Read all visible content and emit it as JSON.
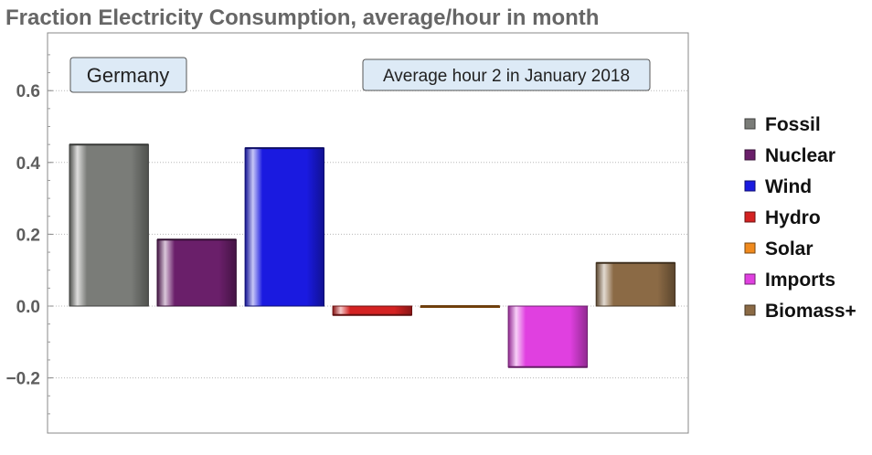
{
  "chart_data": {
    "type": "bar",
    "title": "Fraction Electricity Consumption, average/hour in month",
    "annotations": {
      "region": "Germany",
      "period": "Average hour 2 in January 2018"
    },
    "categories": [
      "Fossil",
      "Nuclear",
      "Wind",
      "Hydro",
      "Solar",
      "Imports",
      "Biomass+"
    ],
    "values": [
      0.45,
      0.185,
      0.44,
      -0.025,
      0.0,
      -0.17,
      0.12
    ],
    "colors": [
      "#7a7c78",
      "#6a1f6a",
      "#1a1ae0",
      "#d42222",
      "#f08a1e",
      "#e040e0",
      "#8b6a45"
    ],
    "ylim": [
      -0.35,
      0.75
    ],
    "yticks": [
      -0.2,
      0.0,
      0.2,
      0.4,
      0.6
    ],
    "ytick_labels": [
      "−0.2",
      "0.0",
      "0.2",
      "0.4",
      "0.6"
    ],
    "xlabel": "",
    "ylabel": "",
    "grid": true,
    "legend_position": "right"
  }
}
